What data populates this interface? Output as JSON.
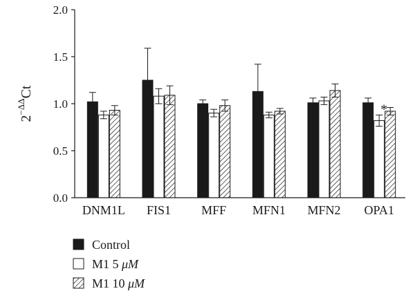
{
  "chart_data": {
    "type": "bar",
    "ylabel": {
      "base": "2",
      "superscript": "−ΔΔ",
      "tail": "Ct"
    },
    "ylim": [
      0,
      2.0
    ],
    "yticks": [
      "0.0",
      "0.5",
      "1.0",
      "1.5",
      "2.0"
    ],
    "categories": [
      "DNM1L",
      "FIS1",
      "MFF",
      "MFN1",
      "MFN2",
      "OPA1"
    ],
    "series": [
      {
        "name": "Control",
        "fill": "solid",
        "color": "#1a1a1a",
        "values": [
          1.02,
          1.25,
          1.0,
          1.13,
          1.01,
          1.01
        ],
        "errors": [
          0.1,
          0.34,
          0.04,
          0.29,
          0.05,
          0.05
        ]
      },
      {
        "name": "M1 5 μM",
        "name_prefix": "M1 5 ",
        "name_unit": "μM",
        "fill": "open",
        "color": "#ffffff",
        "values": [
          0.88,
          1.08,
          0.9,
          0.88,
          1.03,
          0.82
        ],
        "errors": [
          0.04,
          0.08,
          0.04,
          0.03,
          0.04,
          0.06
        ]
      },
      {
        "name": "M1 10 μM",
        "name_prefix": "M1 10 ",
        "name_unit": "μM",
        "fill": "hatched",
        "color": "#ffffff",
        "values": [
          0.93,
          1.09,
          0.98,
          0.92,
          1.14,
          0.92
        ],
        "errors": [
          0.05,
          0.1,
          0.06,
          0.03,
          0.07,
          0.04
        ]
      }
    ],
    "annotations": [
      {
        "category": "OPA1",
        "series": "M1 5 μM",
        "text": "*"
      }
    ],
    "legend_position": "bottom-left",
    "grid": false
  }
}
